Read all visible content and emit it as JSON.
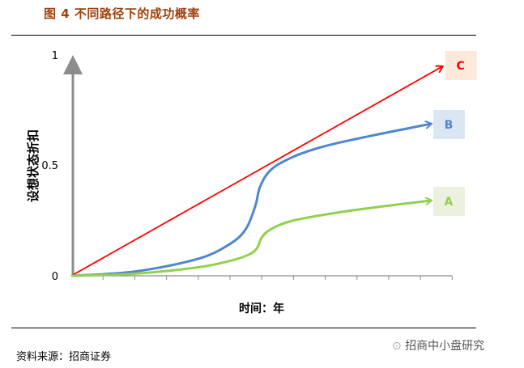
{
  "header": {
    "title": "图 4  不同路径下的成功概率"
  },
  "footer": {
    "source": "资料来源：招商证券",
    "watermark": "招商中小盘研究"
  },
  "chart_data": {
    "type": "line",
    "title": "图 4  不同路径下的成功概率",
    "xlabel": "时间：年",
    "ylabel": "设想状态折扣",
    "ylim": [
      0,
      1
    ],
    "xlim": [
      0,
      12
    ],
    "y_ticks": [
      "0",
      "0.5",
      "1"
    ],
    "x_tick_count": 12,
    "grid": false,
    "series": [
      {
        "name": "C",
        "color": "#ff0000",
        "label_bg": "#fde9d9",
        "points": [
          [
            0,
            0
          ],
          [
            11.7,
            0.985
          ]
        ]
      },
      {
        "name": "B",
        "color": "#4f86d0",
        "label_bg": "#dce6f2",
        "points": [
          [
            0,
            0
          ],
          [
            2,
            0.02
          ],
          [
            4,
            0.08
          ],
          [
            5,
            0.15
          ],
          [
            5.5,
            0.22
          ],
          [
            5.8,
            0.33
          ],
          [
            5.95,
            0.42
          ],
          [
            6.3,
            0.5
          ],
          [
            7,
            0.56
          ],
          [
            8,
            0.61
          ],
          [
            9.5,
            0.66
          ],
          [
            11.35,
            0.715
          ]
        ]
      },
      {
        "name": "A",
        "color": "#92d050",
        "label_bg": "#ebf1de",
        "points": [
          [
            0,
            0
          ],
          [
            2,
            0.01
          ],
          [
            4,
            0.04
          ],
          [
            5,
            0.07
          ],
          [
            5.6,
            0.1
          ],
          [
            5.85,
            0.13
          ],
          [
            6,
            0.18
          ],
          [
            6.3,
            0.22
          ],
          [
            7,
            0.26
          ],
          [
            8.5,
            0.3
          ],
          [
            10,
            0.33
          ],
          [
            11.35,
            0.354
          ]
        ]
      }
    ]
  }
}
